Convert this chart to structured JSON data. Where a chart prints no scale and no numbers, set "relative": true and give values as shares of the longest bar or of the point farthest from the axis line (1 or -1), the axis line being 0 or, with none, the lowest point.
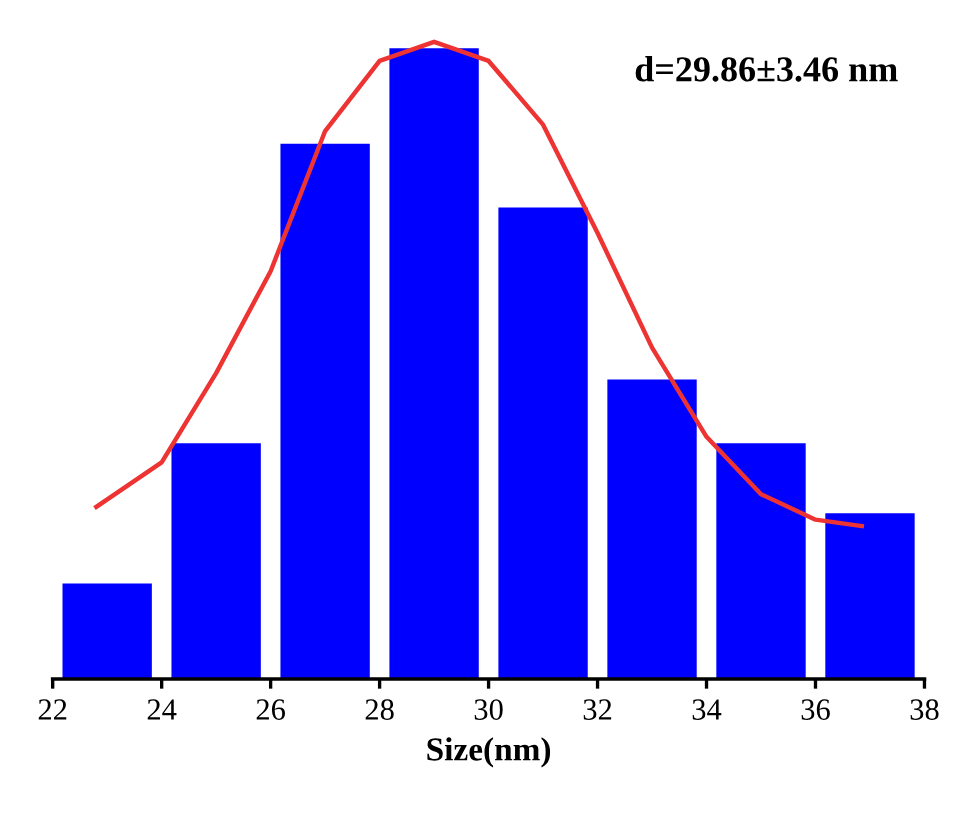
{
  "chart_data": {
    "type": "histogram",
    "relative": true,
    "xlabel": "Size(nm)",
    "annotations": [
      "d=29.86±3.46 nm"
    ],
    "bins": [
      22,
      24,
      26,
      28,
      30,
      32,
      34,
      36,
      38
    ],
    "values": [
      0.15,
      0.37,
      0.84,
      0.99,
      0.74,
      0.47,
      0.37,
      0.26
    ],
    "color": "#0000ff",
    "series": [
      {
        "type": "line",
        "color": "#ee3333",
        "x": [
          22.8,
          24,
          25,
          26,
          27,
          28,
          29,
          30,
          31,
          32,
          33,
          34,
          35,
          36,
          36.85
        ],
        "values": [
          0.27,
          0.34,
          0.48,
          0.64,
          0.86,
          0.97,
          1.0,
          0.97,
          0.87,
          0.7,
          0.52,
          0.38,
          0.29,
          0.25,
          0.24
        ]
      }
    ],
    "xlim": [
      22,
      38
    ],
    "xticks": [
      22,
      24,
      26,
      28,
      30,
      32,
      34,
      36,
      38
    ],
    "tick_labels": "x",
    "grid": false,
    "legend": false
  }
}
